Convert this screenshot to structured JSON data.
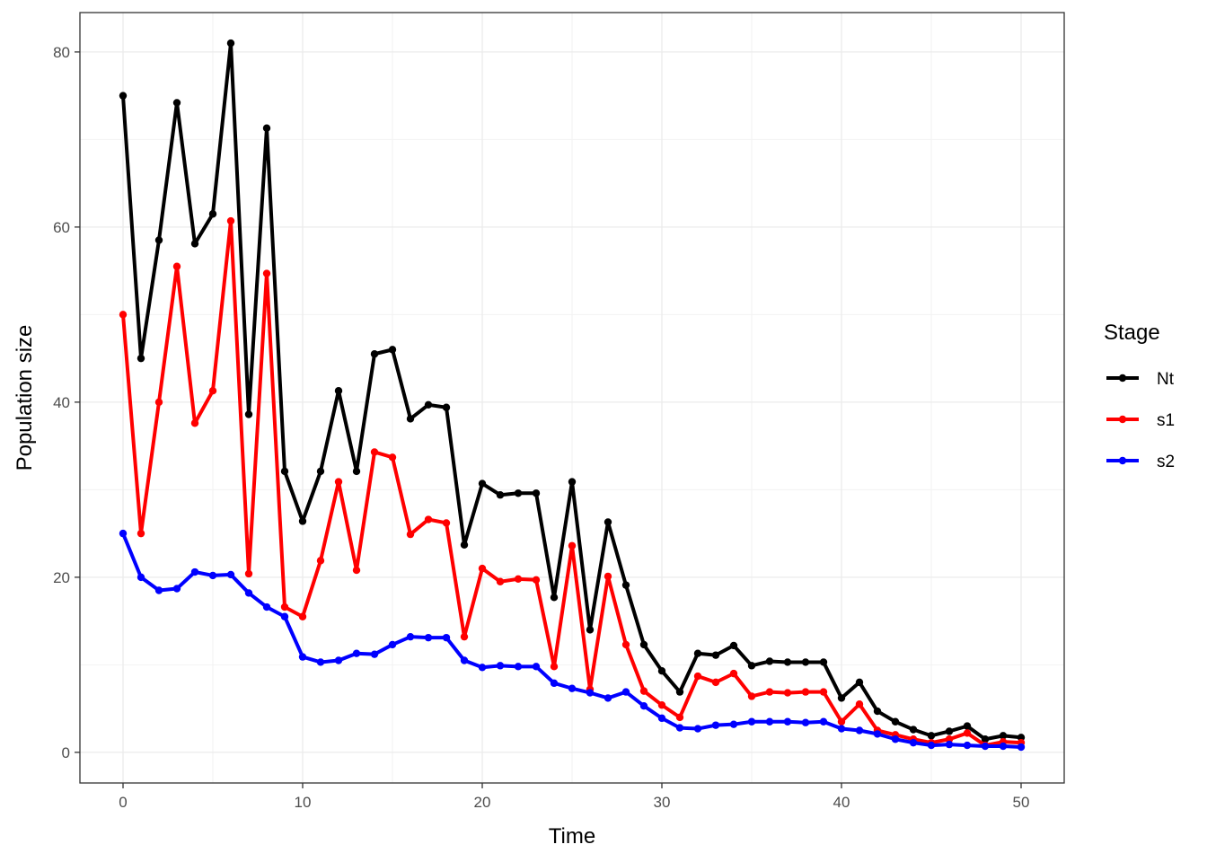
{
  "chart_data": {
    "type": "line",
    "xlabel": "Time",
    "ylabel": "Population size",
    "xlim": [
      -2.4,
      52.4
    ],
    "ylim": [
      -3.5,
      84.5
    ],
    "x_ticks": [
      0,
      10,
      20,
      30,
      40,
      50
    ],
    "y_ticks": [
      0,
      20,
      40,
      60,
      80
    ],
    "x_tick_labels": [
      "0",
      "10",
      "20",
      "30",
      "40",
      "50"
    ],
    "y_tick_labels": [
      "0",
      "20",
      "40",
      "60",
      "80"
    ],
    "grid": true,
    "legend": {
      "title": "Stage",
      "position": "right"
    },
    "x": [
      0,
      1,
      2,
      3,
      4,
      5,
      6,
      7,
      8,
      9,
      10,
      11,
      12,
      13,
      14,
      15,
      16,
      17,
      18,
      19,
      20,
      21,
      22,
      23,
      24,
      25,
      26,
      27,
      28,
      29,
      30,
      31,
      32,
      33,
      34,
      35,
      36,
      37,
      38,
      39,
      40,
      41,
      42,
      43,
      44,
      45,
      46,
      47,
      48,
      49,
      50
    ],
    "series": [
      {
        "name": "Nt",
        "color": "#000000",
        "values": [
          75,
          45,
          58.5,
          74.2,
          58.1,
          61.5,
          81,
          38.6,
          71.3,
          32.1,
          26.4,
          32.1,
          41.3,
          32.1,
          45.5,
          46,
          38.1,
          39.7,
          39.4,
          23.7,
          30.7,
          29.4,
          29.6,
          29.6,
          17.7,
          30.9,
          14,
          26.3,
          19.1,
          12.3,
          9.3,
          6.9,
          11.3,
          11.1,
          12.2,
          9.9,
          10.4,
          10.3,
          10.3,
          10.3,
          6.2,
          8,
          4.7,
          3.5,
          2.6,
          1.9,
          2.4,
          3,
          1.5,
          1.9,
          1.7
        ]
      },
      {
        "name": "s1",
        "color": "#ff0000",
        "values": [
          50,
          25,
          40,
          55.5,
          37.6,
          41.3,
          60.7,
          20.4,
          54.7,
          16.6,
          15.5,
          21.9,
          30.9,
          20.8,
          34.3,
          33.7,
          24.9,
          26.6,
          26.2,
          13.2,
          21,
          19.5,
          19.8,
          19.7,
          9.8,
          23.6,
          7.2,
          20.1,
          12.3,
          7,
          5.4,
          4,
          8.7,
          8,
          9,
          6.4,
          6.9,
          6.8,
          6.9,
          6.9,
          3.5,
          5.5,
          2.5,
          2,
          1.5,
          1.1,
          1.5,
          2.2,
          0.8,
          1.2,
          1.1
        ]
      },
      {
        "name": "s2",
        "color": "#0000ff",
        "values": [
          25,
          20,
          18.5,
          18.7,
          20.6,
          20.2,
          20.3,
          18.2,
          16.6,
          15.5,
          10.9,
          10.3,
          10.5,
          11.3,
          11.2,
          12.3,
          13.2,
          13.1,
          13.1,
          10.5,
          9.7,
          9.9,
          9.8,
          9.8,
          7.9,
          7.3,
          6.8,
          6.2,
          6.9,
          5.3,
          3.9,
          2.8,
          2.7,
          3.1,
          3.2,
          3.5,
          3.5,
          3.5,
          3.4,
          3.5,
          2.7,
          2.5,
          2.1,
          1.5,
          1.1,
          0.8,
          0.9,
          0.8,
          0.7,
          0.7,
          0.6
        ]
      }
    ]
  }
}
